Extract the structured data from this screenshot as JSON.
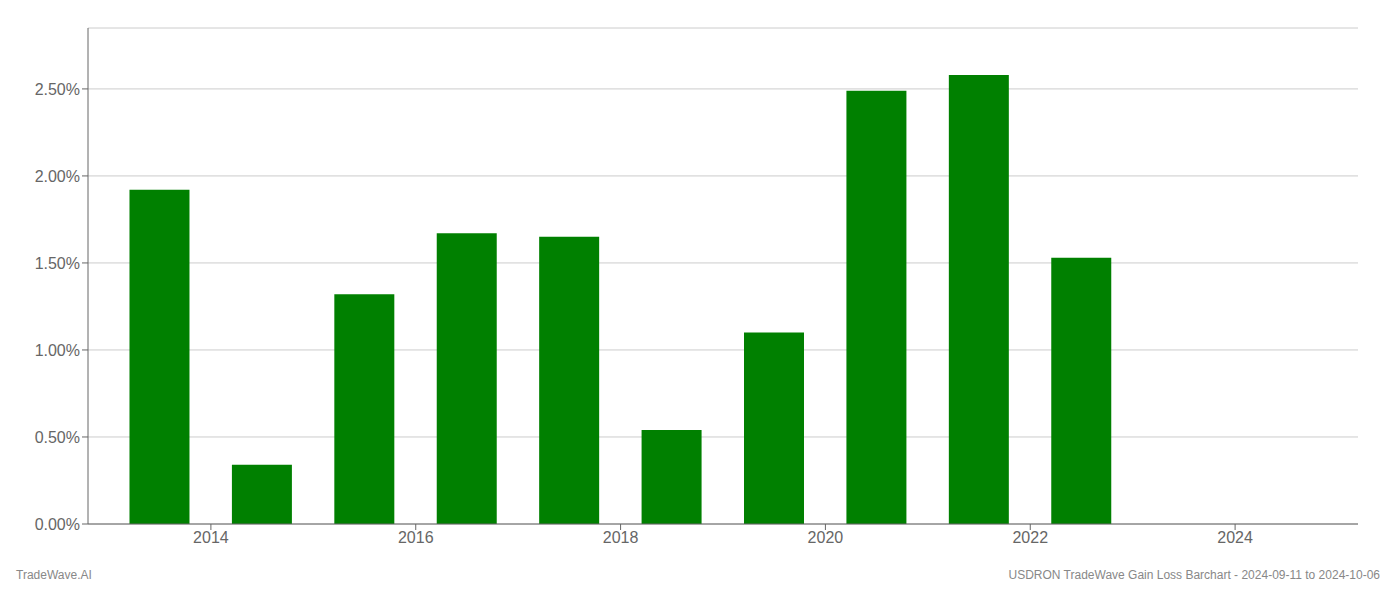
{
  "chart_data": {
    "type": "bar",
    "x": [
      2013.5,
      2014.5,
      2015.5,
      2016.5,
      2017.5,
      2018.5,
      2019.5,
      2020.5,
      2021.5,
      2022.5,
      2023.5
    ],
    "values": [
      0.0192,
      0.0034,
      0.0132,
      0.0167,
      0.0165,
      0.0054,
      0.011,
      0.0249,
      0.0258,
      0.0153,
      0.0
    ],
    "color": "#008000",
    "xlim": [
      2012.8,
      2025.2
    ],
    "xticks": [
      2014,
      2016,
      2018,
      2020,
      2022,
      2024
    ],
    "ylim": [
      0,
      0.0285
    ],
    "yticks": [
      {
        "value": 0.0,
        "label": "0.00%"
      },
      {
        "value": 0.005,
        "label": "0.50%"
      },
      {
        "value": 0.01,
        "label": "1.00%"
      },
      {
        "value": 0.015,
        "label": "1.50%"
      },
      {
        "value": 0.02,
        "label": "2.00%"
      },
      {
        "value": 0.025,
        "label": "2.50%"
      }
    ],
    "grid": true,
    "annotations": [
      "TradeWave.AI",
      "USDRON TradeWave Gain Loss Barchart - 2024-09-11 to 2024-10-06"
    ]
  }
}
